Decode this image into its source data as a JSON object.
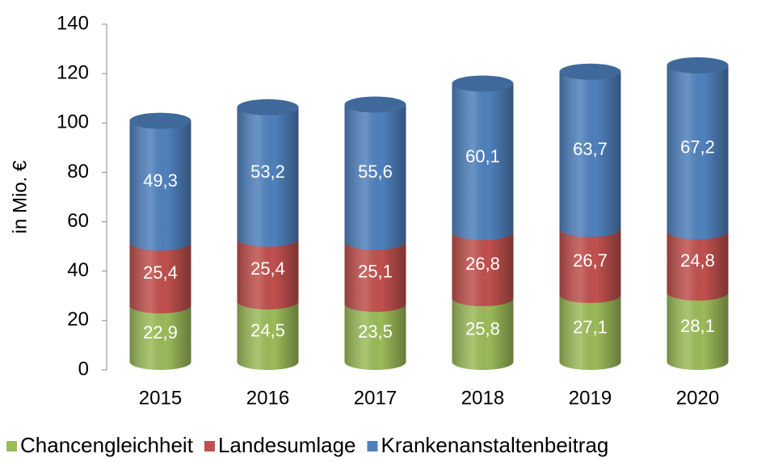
{
  "chart_data": {
    "type": "bar",
    "stacked": true,
    "y_label": "in Mio. €",
    "categories": [
      "2015",
      "2016",
      "2017",
      "2018",
      "2019",
      "2020"
    ],
    "series": [
      {
        "name": "Chancengleichheit",
        "color": "#9bbb59",
        "values": [
          22.9,
          24.5,
          23.5,
          25.8,
          27.1,
          28.1
        ],
        "value_labels": [
          "22,9",
          "24,5",
          "23,5",
          "25,8",
          "27,1",
          "28,1"
        ]
      },
      {
        "name": "Landesumlage",
        "color": "#c0504d",
        "values": [
          25.4,
          25.4,
          25.1,
          26.8,
          26.7,
          24.8
        ],
        "value_labels": [
          "25,4",
          "25,4",
          "25,1",
          "26,8",
          "26,7",
          "24,8"
        ]
      },
      {
        "name": "Krankenanstaltenbeitrag",
        "color": "#4f81bd",
        "values": [
          49.3,
          53.2,
          55.6,
          60.1,
          63.7,
          67.2
        ],
        "value_labels": [
          "49,3",
          "53,2",
          "55,6",
          "60,1",
          "63,7",
          "67,2"
        ]
      }
    ],
    "ylim": [
      0,
      140
    ],
    "yticks": [
      0,
      20,
      40,
      60,
      80,
      100,
      120,
      140
    ],
    "grid": false,
    "legend": "bottom"
  }
}
